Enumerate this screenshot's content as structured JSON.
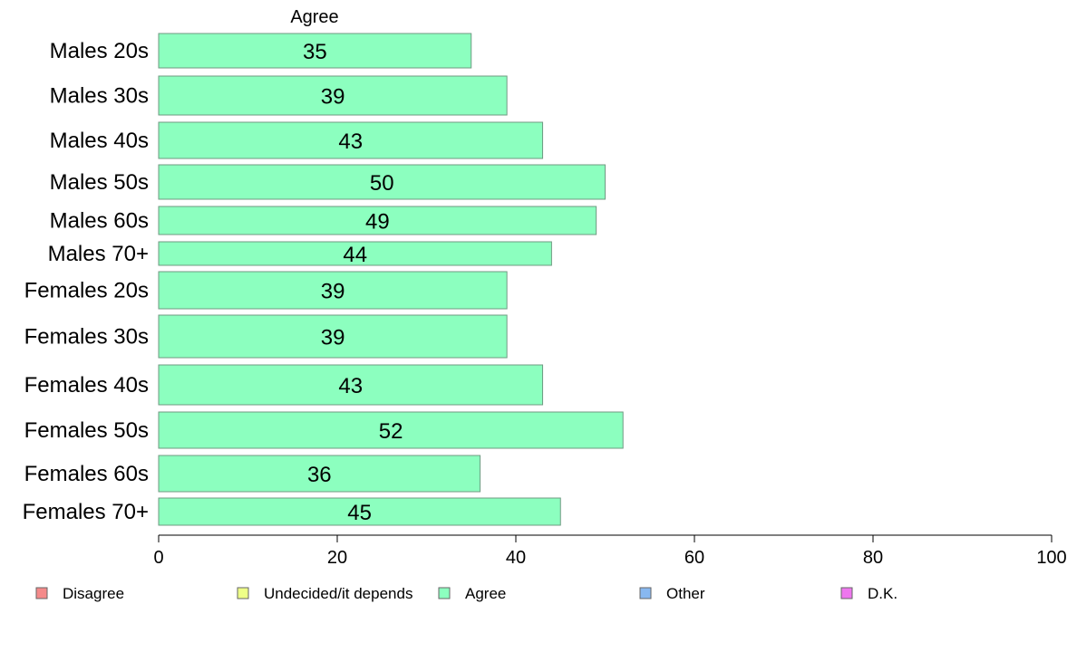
{
  "chart_data": {
    "type": "bar",
    "orientation": "horizontal",
    "top_label": "Agree",
    "categories": [
      "Males 20s",
      "Males 30s",
      "Males 40s",
      "Males 50s",
      "Males 60s",
      "Males 70+",
      "Females 20s",
      "Females 30s",
      "Females 40s",
      "Females 50s",
      "Females 60s",
      "Females 70+"
    ],
    "series": [
      {
        "values": [
          35,
          39,
          43,
          50,
          49,
          44,
          39,
          39,
          43,
          52,
          36,
          45
        ]
      }
    ],
    "xlim": [
      0,
      100
    ],
    "x_ticks": [
      0,
      20,
      40,
      60,
      80,
      100
    ],
    "grid": false,
    "bar_color": "#8cffbf",
    "bar_border_color": "#6f9a82",
    "legend": {
      "position": "bottom",
      "items": [
        {
          "label": "Disagree",
          "color": "#f48a8a"
        },
        {
          "label": "Undecided/it depends",
          "color": "#eeff88"
        },
        {
          "label": "Agree",
          "color": "#8cffbf"
        },
        {
          "label": "Other",
          "color": "#88b8f0"
        },
        {
          "label": "D.K.",
          "color": "#ee77ee"
        }
      ]
    }
  }
}
